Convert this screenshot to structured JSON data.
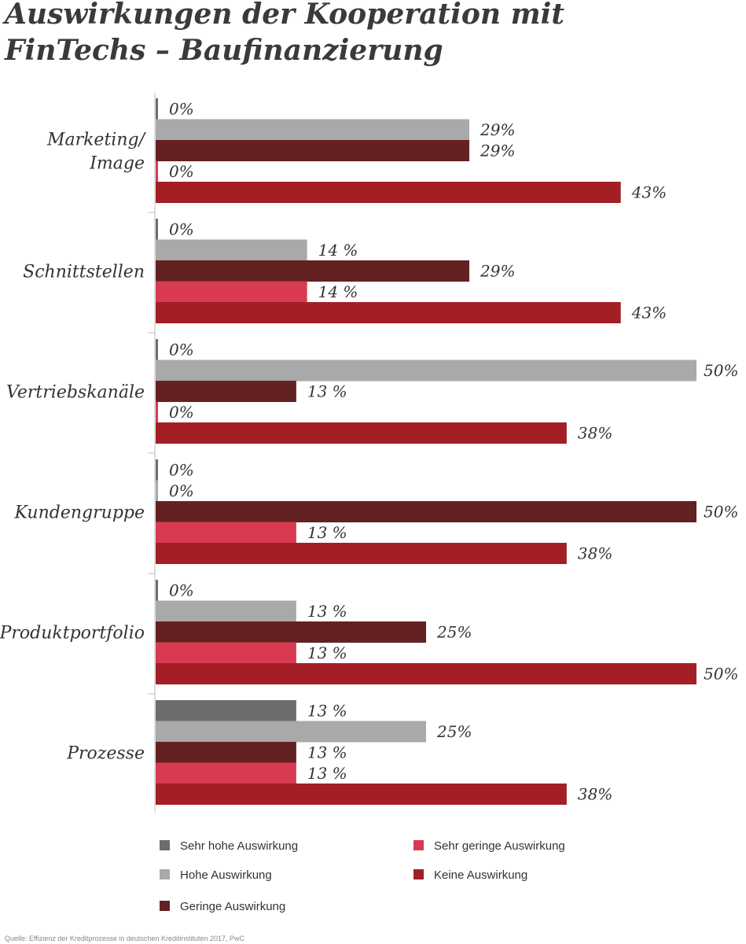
{
  "chart_data": {
    "type": "bar",
    "orientation": "horizontal",
    "title_lines": [
      "Auswirkungen der Kooperation mit",
      "FinTechs – Baufinanzierung"
    ],
    "categories": [
      [
        "Marketing/",
        "Image"
      ],
      [
        "Schnittstellen"
      ],
      [
        "Vertriebskanäle"
      ],
      [
        "Kundengruppe"
      ],
      [
        "Produktportfolio"
      ],
      [
        "Prozesse"
      ]
    ],
    "series": [
      {
        "name": "Sehr hohe Auswirkung",
        "color": "#6d6d6d",
        "values": [
          0,
          0,
          0,
          0,
          0,
          13
        ],
        "labels": [
          "0%",
          "0%",
          "0%",
          "0%",
          "0%",
          "13 %"
        ]
      },
      {
        "name": "Hohe Auswirkung",
        "color": "#a9a9a9",
        "values": [
          29,
          14,
          50,
          0,
          13,
          25
        ],
        "labels": [
          "29%",
          "14 %",
          "50%",
          "0%",
          "13 %",
          "25%"
        ]
      },
      {
        "name": "Geringe Auswirkung",
        "color": "#632121",
        "values": [
          29,
          29,
          13,
          50,
          25,
          13
        ],
        "labels": [
          "29%",
          "29%",
          "13 %",
          "50%",
          "25%",
          "13 %"
        ]
      },
      {
        "name": "Sehr geringe Auswirkung",
        "color": "#d83a52",
        "values": [
          0,
          14,
          0,
          13,
          13,
          13
        ],
        "labels": [
          "0%",
          "14 %",
          "0%",
          "13 %",
          "13 %",
          "13 %"
        ]
      },
      {
        "name": "Keine Auswirkung",
        "color": "#a31f25",
        "values": [
          43,
          43,
          38,
          38,
          50,
          38
        ],
        "labels": [
          "43%",
          "43%",
          "38%",
          "38%",
          "50%",
          "38%"
        ]
      }
    ],
    "xlim": [
      0,
      50
    ],
    "legend": {
      "placement": "bottom",
      "order": [
        "Sehr hohe Auswirkung",
        "Sehr geringe Auswirkung",
        "Hohe Auswirkung",
        "Keine Auswirkung",
        "Geringe Auswirkung"
      ]
    },
    "source": "Quelle: Effizienz der Kreditprozesse in deutschen Kreditinstituten 2017, PwC"
  }
}
